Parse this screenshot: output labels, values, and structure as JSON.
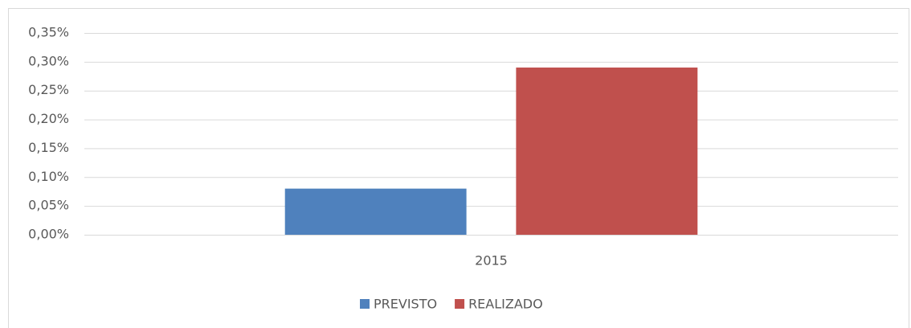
{
  "chart_data": {
    "type": "bar",
    "categories": [
      "2015"
    ],
    "series": [
      {
        "name": "PREVISTO",
        "color": "#4f81bd",
        "values": [
          0.08
        ]
      },
      {
        "name": "REALIZADO",
        "color": "#c0504d",
        "values": [
          0.29
        ]
      }
    ],
    "ylim": [
      0,
      0.35
    ],
    "yticks": [
      {
        "value": 0,
        "label": "0,00%"
      },
      {
        "value": 0.05,
        "label": "0,05%"
      },
      {
        "value": 0.1,
        "label": "0,10%"
      },
      {
        "value": 0.15,
        "label": "0,15%"
      },
      {
        "value": 0.2,
        "label": "0,20%"
      },
      {
        "value": 0.25,
        "label": "0,25%"
      },
      {
        "value": 0.3,
        "label": "0,30%"
      },
      {
        "value": 0.35,
        "label": "0,35%"
      }
    ],
    "grid": true,
    "legend": "bottom"
  }
}
